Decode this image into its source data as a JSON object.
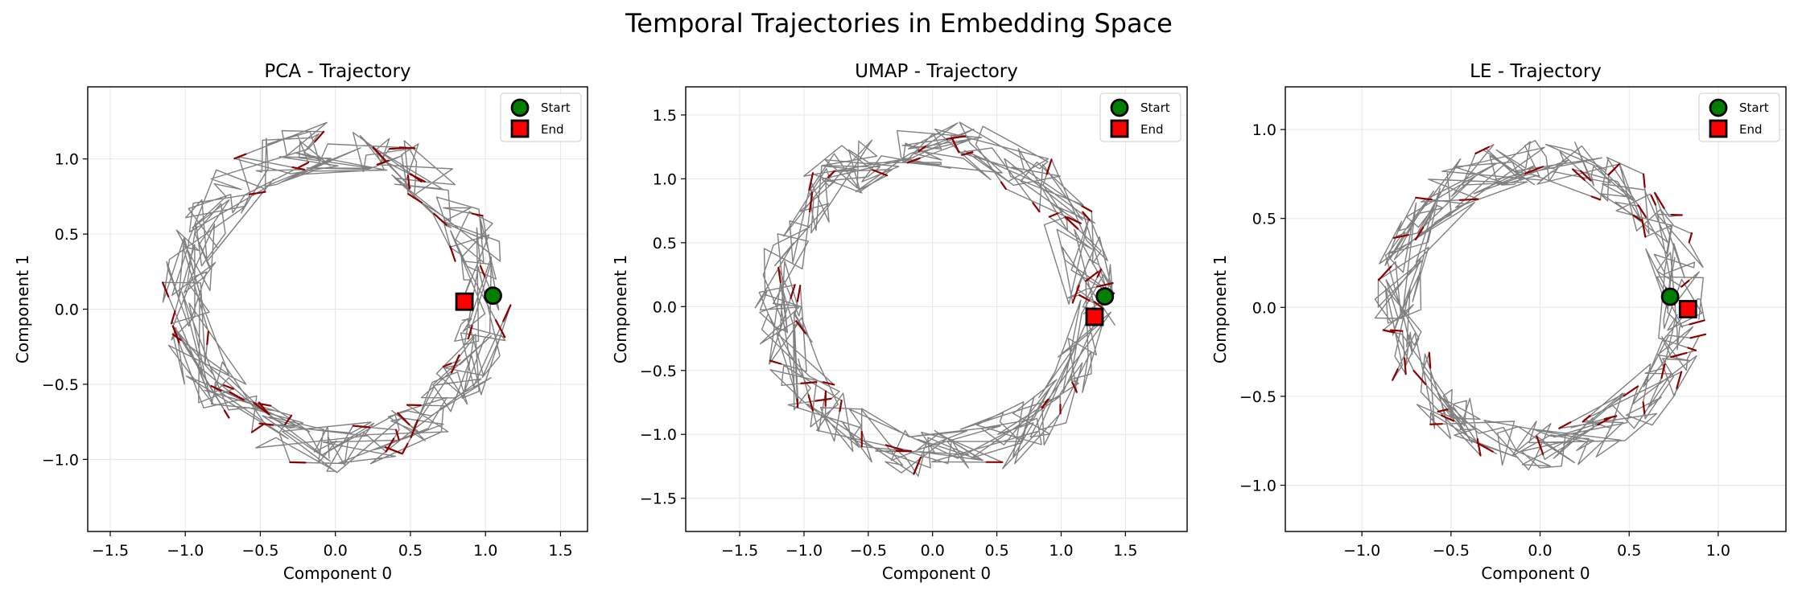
{
  "figure": {
    "title": "Temporal Trajectories in Embedding Space"
  },
  "colors": {
    "trajectory": "#808080",
    "arrow": "#8b0000",
    "start": "#007f00",
    "end": "#ff0000",
    "grid": "#e6e6e6"
  },
  "chart_data": [
    {
      "type": "line",
      "title": "PCA - Trajectory",
      "xlabel": "Component 0",
      "ylabel": "Component 1",
      "xlim": [
        -1.65,
        1.68
      ],
      "ylim": [
        -1.48,
        1.48
      ],
      "xticks": [
        -1.5,
        -1.0,
        -0.5,
        0.0,
        0.5,
        1.0,
        1.5
      ],
      "xtick_labels": [
        "−1.5",
        "−1.0",
        "−0.5",
        "0.0",
        "0.5",
        "1.0",
        "1.5"
      ],
      "yticks": [
        -1.0,
        -0.5,
        0.0,
        0.5,
        1.0
      ],
      "ytick_labels": [
        "−1.0",
        "−0.5",
        "0.0",
        "0.5",
        "1.0"
      ],
      "grid": true,
      "legend": "top-right",
      "series": [
        {
          "name": "Start",
          "marker": "circle",
          "x": [
            1.05
          ],
          "y": [
            0.09
          ]
        },
        {
          "name": "End",
          "marker": "square",
          "x": [
            0.86
          ],
          "y": [
            0.05
          ]
        }
      ],
      "trajectory": {
        "center": [
          0.0,
          0.08
        ],
        "radius": 1.0,
        "jitter": 0.17,
        "points": 340,
        "arrows": 48
      }
    },
    {
      "type": "line",
      "title": "UMAP - Trajectory",
      "xlabel": "Component 0",
      "ylabel": "Component 1",
      "xlim": [
        -1.92,
        1.98
      ],
      "ylim": [
        -1.76,
        1.72
      ],
      "xticks": [
        -1.5,
        -1.0,
        -0.5,
        0.0,
        0.5,
        1.0,
        1.5
      ],
      "xtick_labels": [
        "−1.5",
        "−1.0",
        "−0.5",
        "0.0",
        "0.5",
        "1.0",
        "1.5"
      ],
      "yticks": [
        -1.5,
        -1.0,
        -0.5,
        0.0,
        0.5,
        1.0,
        1.5
      ],
      "ytick_labels": [
        "−1.5",
        "−1.0",
        "−0.5",
        "0.0",
        "0.5",
        "1.0",
        "1.5"
      ],
      "grid": true,
      "legend": "top-right",
      "series": [
        {
          "name": "Start",
          "marker": "circle",
          "x": [
            1.34
          ],
          "y": [
            0.08
          ]
        },
        {
          "name": "End",
          "marker": "square",
          "x": [
            1.26
          ],
          "y": [
            -0.08
          ]
        }
      ],
      "trajectory": {
        "center": [
          0.03,
          0.05
        ],
        "radius": 1.22,
        "jitter": 0.2,
        "points": 340,
        "arrows": 48
      }
    },
    {
      "type": "line",
      "title": "LE - Trajectory",
      "xlabel": "Component 0",
      "ylabel": "Component 1",
      "xlim": [
        -1.43,
        1.38
      ],
      "ylim": [
        -1.26,
        1.24
      ],
      "xticks": [
        -1.0,
        -0.5,
        0.0,
        0.5,
        1.0
      ],
      "xtick_labels": [
        "−1.0",
        "−0.5",
        "0.0",
        "0.5",
        "1.0"
      ],
      "yticks": [
        -1.0,
        -0.5,
        0.0,
        0.5,
        1.0
      ],
      "ytick_labels": [
        "−1.0",
        "−0.5",
        "0.0",
        "0.5",
        "1.0"
      ],
      "grid": true,
      "legend": "top-right",
      "series": [
        {
          "name": "Start",
          "marker": "circle",
          "x": [
            0.73
          ],
          "y": [
            0.06
          ]
        },
        {
          "name": "End",
          "marker": "square",
          "x": [
            0.83
          ],
          "y": [
            -0.01
          ]
        }
      ],
      "trajectory": {
        "center": [
          0.0,
          0.02
        ],
        "radius": 0.8,
        "jitter": 0.14,
        "points": 340,
        "arrows": 48
      }
    }
  ]
}
